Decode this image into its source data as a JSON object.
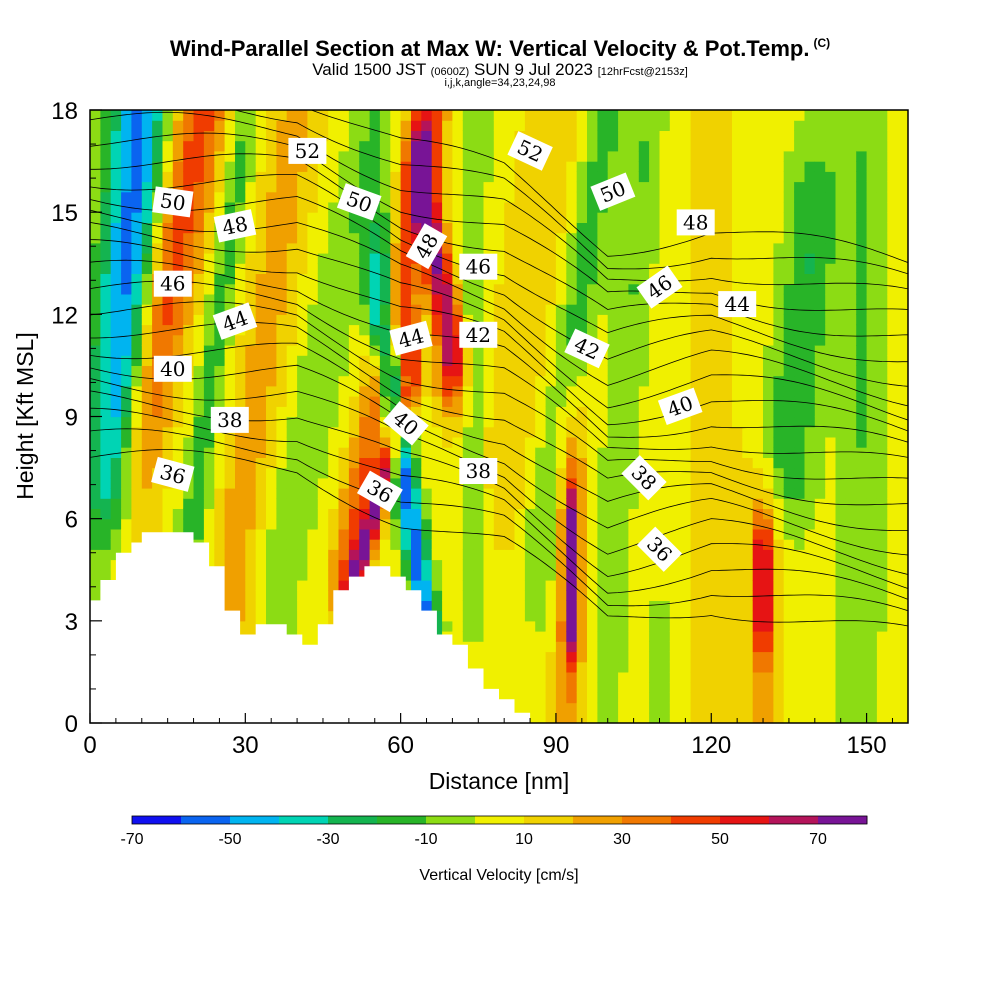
{
  "title": {
    "main": "Wind-Parallel Section at Max W: Vertical Velocity & Pot.Temp.",
    "copyright": "(C)",
    "valid_prefix": "Valid 1500 JST",
    "valid_utc": "(0600Z)",
    "valid_date": "SUN 9 Jul 2023",
    "forecast": "[12hrFcst@2153z]",
    "indices": "i,j,k,angle=34,23,24,98"
  },
  "chart_data": {
    "type": "heatmap",
    "xlabel": "Distance [nm]",
    "ylabel": "Height [Kft MSL]",
    "xlim": [
      0,
      158
    ],
    "ylim": [
      0,
      18
    ],
    "x_ticks": [
      0,
      30,
      60,
      90,
      120,
      150
    ],
    "y_ticks": [
      0,
      3,
      6,
      9,
      12,
      15,
      18
    ],
    "colorbar": {
      "label": "Vertical Velocity [cm/s]",
      "range": [
        -70,
        80
      ],
      "step": 10,
      "tick_values": [
        -70,
        -50,
        -30,
        -10,
        10,
        30,
        50,
        70
      ],
      "colors": [
        "#1010f0",
        "#0a64f0",
        "#00b4f0",
        "#00d4b4",
        "#14b450",
        "#28b428",
        "#8cdc14",
        "#f0f000",
        "#f0d200",
        "#f0a000",
        "#f07800",
        "#f03c00",
        "#e61414",
        "#b4145a",
        "#781496"
      ]
    },
    "terrain_kft": [
      [
        0,
        3.6
      ],
      [
        2,
        3.6
      ],
      [
        2,
        4.2
      ],
      [
        5,
        4.2
      ],
      [
        5,
        5
      ],
      [
        8,
        5
      ],
      [
        8,
        5.3
      ],
      [
        10,
        5.3
      ],
      [
        10,
        5.6
      ],
      [
        20,
        5.6
      ],
      [
        20,
        5.3
      ],
      [
        23,
        5.3
      ],
      [
        23,
        4.6
      ],
      [
        26,
        4.6
      ],
      [
        26,
        3.3
      ],
      [
        29,
        3.3
      ],
      [
        29,
        2.6
      ],
      [
        32,
        2.6
      ],
      [
        32,
        2.9
      ],
      [
        38,
        2.9
      ],
      [
        38,
        2.6
      ],
      [
        41,
        2.6
      ],
      [
        41,
        2.3
      ],
      [
        44,
        2.3
      ],
      [
        44,
        2.9
      ],
      [
        47,
        2.9
      ],
      [
        47,
        3.9
      ],
      [
        50,
        3.9
      ],
      [
        50,
        4.3
      ],
      [
        53,
        4.3
      ],
      [
        53,
        4.6
      ],
      [
        58,
        4.6
      ],
      [
        58,
        4.3
      ],
      [
        61,
        4.3
      ],
      [
        61,
        3.9
      ],
      [
        64,
        3.9
      ],
      [
        64,
        3.3
      ],
      [
        67,
        3.3
      ],
      [
        67,
        2.6
      ],
      [
        70,
        2.6
      ],
      [
        70,
        2.3
      ],
      [
        73,
        2.3
      ],
      [
        73,
        1.6
      ],
      [
        76,
        1.6
      ],
      [
        76,
        1
      ],
      [
        79,
        1
      ],
      [
        79,
        0.7
      ],
      [
        82,
        0.7
      ],
      [
        82,
        0.3
      ],
      [
        85,
        0.3
      ],
      [
        85,
        0
      ],
      [
        158,
        0
      ]
    ],
    "w_field": {
      "background_cm_s": 5,
      "bands": [
        {
          "w": -40,
          "top": [
            8,
            18
          ],
          "bottom": [
            3,
            7
          ],
          "width": 10
        },
        {
          "w": -20,
          "top": [
            12,
            18
          ],
          "bottom": [
            6,
            7
          ],
          "width": 8
        },
        {
          "w": 45,
          "top": [
            22,
            18
          ],
          "bottom": [
            6,
            6
          ],
          "width": 11
        },
        {
          "w": -15,
          "top": [
            30,
            18
          ],
          "bottom": [
            20,
            6
          ],
          "width": 6
        },
        {
          "w": 25,
          "top": [
            40,
            18
          ],
          "bottom": [
            27,
            4
          ],
          "width": 10
        },
        {
          "w": -10,
          "top": [
            55,
            18
          ],
          "bottom": [
            36,
            4
          ],
          "width": 9
        },
        {
          "w": 40,
          "top": [
            66,
            18
          ],
          "bottom": [
            50,
            5
          ],
          "width": 7
        },
        {
          "w": 60,
          "top": [
            62,
            10
          ],
          "bottom": [
            51,
            4
          ],
          "width": 4
        },
        {
          "w": -55,
          "top": [
            56,
            12
          ],
          "bottom": [
            65,
            3
          ],
          "width": 5
        },
        {
          "w": 70,
          "top": [
            64,
            16
          ],
          "bottom": [
            70,
            11
          ],
          "width": 6
        },
        {
          "w": -10,
          "top": [
            74,
            18
          ],
          "bottom": [
            74,
            6
          ],
          "width": 6
        },
        {
          "w": 20,
          "top": [
            90,
            18
          ],
          "bottom": [
            80,
            8
          ],
          "width": 12
        },
        {
          "w": -15,
          "top": [
            100,
            18
          ],
          "bottom": [
            88,
            6
          ],
          "width": 8
        },
        {
          "w": 55,
          "top": [
            93,
            6
          ],
          "bottom": [
            93,
            3
          ],
          "width": 3
        },
        {
          "w": 30,
          "top": [
            93,
            8
          ],
          "bottom": [
            92,
            1
          ],
          "width": 7
        },
        {
          "w": -10,
          "top": [
            108,
            18
          ],
          "bottom": [
            100,
            4
          ],
          "width": 7
        },
        {
          "w": 15,
          "top": [
            120,
            18
          ],
          "bottom": [
            120,
            0
          ],
          "width": 12
        },
        {
          "w": -20,
          "top": [
            140,
            15
          ],
          "bottom": [
            135,
            8
          ],
          "width": 10
        },
        {
          "w": 50,
          "top": [
            130,
            5
          ],
          "bottom": [
            130,
            3
          ],
          "width": 3
        },
        {
          "w": 25,
          "top": [
            130,
            6
          ],
          "bottom": [
            130,
            1
          ],
          "width": 7
        },
        {
          "w": -10,
          "top": [
            150,
            18
          ],
          "bottom": [
            148,
            0
          ],
          "width": 9
        },
        {
          "w": -15,
          "top": [
            110,
            2.5
          ],
          "bottom": [
            110,
            0.5
          ],
          "width": 3
        }
      ]
    },
    "theta_contours": {
      "unit_note": "",
      "levels": [
        34,
        35,
        36,
        37,
        38,
        39,
        40,
        41,
        42,
        43,
        44,
        45,
        46,
        47,
        48,
        49,
        50,
        51,
        52,
        53,
        54
      ],
      "base_height_kft": [
        [
          0,
          7.8
        ],
        [
          40,
          7.5
        ],
        [
          60,
          6.0
        ],
        [
          80,
          5.2
        ],
        [
          100,
          3.0
        ],
        [
          120,
          3.5
        ],
        [
          158,
          2.5
        ]
      ],
      "labels": [
        {
          "text": "52",
          "x": 42,
          "y": 16.8,
          "angle": 0
        },
        {
          "text": "52",
          "x": 85,
          "y": 16.8,
          "angle": 25
        },
        {
          "text": "50",
          "x": 16,
          "y": 15.3,
          "angle": 8
        },
        {
          "text": "50",
          "x": 52,
          "y": 15.3,
          "angle": 20
        },
        {
          "text": "50",
          "x": 101,
          "y": 15.6,
          "angle": -22
        },
        {
          "text": "48",
          "x": 28,
          "y": 14.6,
          "angle": -12
        },
        {
          "text": "48",
          "x": 65,
          "y": 14.0,
          "angle": -60
        },
        {
          "text": "48",
          "x": 117,
          "y": 14.7,
          "angle": 0
        },
        {
          "text": "46",
          "x": 16,
          "y": 12.9,
          "angle": 0
        },
        {
          "text": "46",
          "x": 75,
          "y": 13.4,
          "angle": 0
        },
        {
          "text": "46",
          "x": 110,
          "y": 12.8,
          "angle": -35
        },
        {
          "text": "44",
          "x": 28,
          "y": 11.8,
          "angle": -20
        },
        {
          "text": "44",
          "x": 62,
          "y": 11.3,
          "angle": -15
        },
        {
          "text": "44",
          "x": 125,
          "y": 12.3,
          "angle": 0
        },
        {
          "text": "42",
          "x": 75,
          "y": 11.4,
          "angle": 0
        },
        {
          "text": "42",
          "x": 96,
          "y": 11.0,
          "angle": 25
        },
        {
          "text": "40",
          "x": 16,
          "y": 10.4,
          "angle": 0
        },
        {
          "text": "40",
          "x": 61,
          "y": 8.8,
          "angle": 40
        },
        {
          "text": "40",
          "x": 114,
          "y": 9.3,
          "angle": -20
        },
        {
          "text": "38",
          "x": 27,
          "y": 8.9,
          "angle": 0
        },
        {
          "text": "38",
          "x": 75,
          "y": 7.4,
          "angle": 0
        },
        {
          "text": "38",
          "x": 107,
          "y": 7.2,
          "angle": 45
        },
        {
          "text": "36",
          "x": 16,
          "y": 7.3,
          "angle": 15
        },
        {
          "text": "36",
          "x": 56,
          "y": 6.8,
          "angle": 30
        },
        {
          "text": "36",
          "x": 110,
          "y": 5.1,
          "angle": 45
        }
      ]
    }
  }
}
